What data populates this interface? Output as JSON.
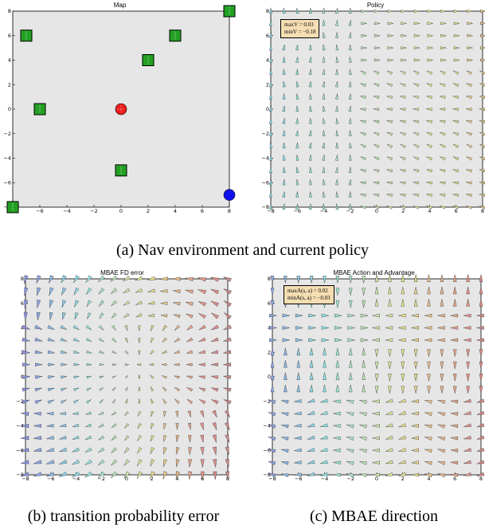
{
  "figure": {
    "captions": {
      "a": "(a)  Nav environment and current policy",
      "b": "(b)  transition probability error",
      "c": "(c)  MBAE direction"
    }
  },
  "chart_data": [
    {
      "id": "map",
      "type": "scatter",
      "title": "Map",
      "xlim": [
        -8,
        8
      ],
      "ylim": [
        -8,
        8
      ],
      "xticks": [
        "−8",
        "−6",
        "−4",
        "−2",
        "0",
        "2",
        "4",
        "6",
        "8"
      ],
      "yticks": [
        "−8",
        "−6",
        "−4",
        "−2",
        "0",
        "2",
        "4",
        "6",
        "8"
      ],
      "background": "#e6e6e6",
      "series": [
        {
          "marker": "square",
          "color": "#22a022",
          "points": [
            [
              -7,
              6
            ],
            [
              -6,
              0
            ],
            [
              2,
              4
            ],
            [
              4,
              6
            ],
            [
              0,
              -5
            ],
            [
              8,
              8
            ],
            [
              -8,
              -8
            ]
          ]
        },
        {
          "marker": "circle",
          "color": "#ee1c1c",
          "points": [
            [
              0,
              0
            ]
          ]
        },
        {
          "marker": "circle",
          "color": "#1010ee",
          "points": [
            [
              8,
              -7
            ]
          ]
        }
      ]
    },
    {
      "id": "policy",
      "type": "quiver",
      "title": "Policy",
      "xlim": [
        -8,
        8
      ],
      "ylim": [
        -8,
        8
      ],
      "xticks": [
        "−8",
        "−6",
        "−4",
        "−2",
        "0",
        "2",
        "4",
        "6",
        "8"
      ],
      "yticks": [
        "−8",
        "−6",
        "−4",
        "−2",
        "0",
        "2",
        "4",
        "6",
        "8"
      ],
      "annotation": [
        "maxV = 0.03",
        "minV = −0.18"
      ],
      "grid_n": 17
    },
    {
      "id": "fd_error",
      "type": "quiver",
      "title": "MBAE FD error",
      "xlim": [
        -8,
        8
      ],
      "ylim": [
        -8,
        8
      ],
      "xticks": [
        "−8",
        "−6",
        "−4",
        "−2",
        "0",
        "2",
        "4",
        "6",
        "8"
      ],
      "yticks": [
        "−8",
        "−6",
        "−4",
        "−2",
        "0",
        "2",
        "4",
        "6",
        "8"
      ],
      "grid_n": 17
    },
    {
      "id": "mbae",
      "type": "quiver",
      "title": "MBAE Action and Advantage",
      "xlim": [
        -8,
        8
      ],
      "ylim": [
        -8,
        8
      ],
      "xticks": [
        "−8",
        "−6",
        "−4",
        "−2",
        "0",
        "2",
        "4",
        "6",
        "8"
      ],
      "yticks": [
        "−8",
        "−6",
        "−4",
        "−2",
        "0",
        "2",
        "4",
        "6",
        "8"
      ],
      "annotation": [
        "maxA(s, a) = 0.02",
        "minA(s, a) = −0.03"
      ],
      "grid_n": 17
    }
  ]
}
